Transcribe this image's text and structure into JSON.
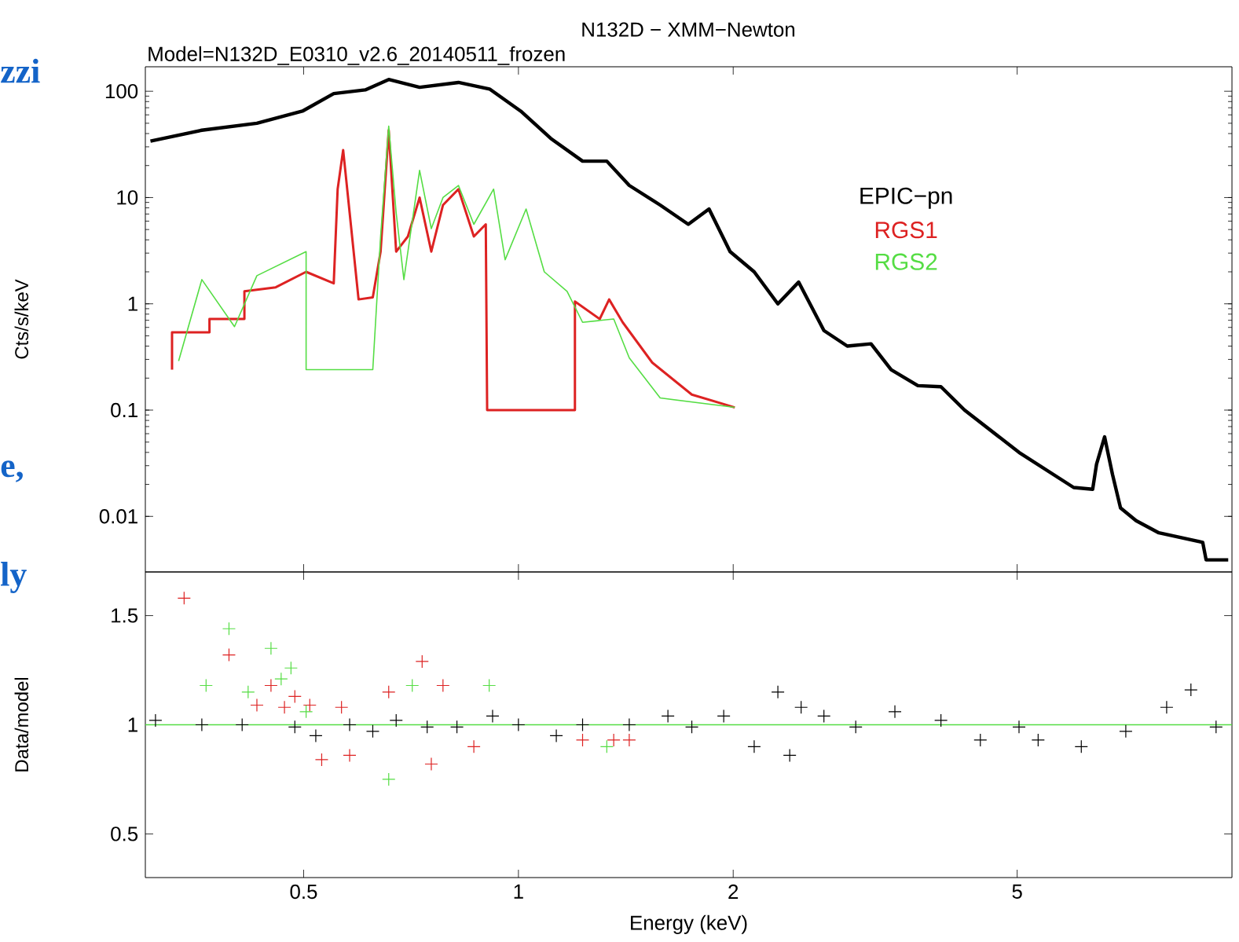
{
  "chart_data": [
    {
      "type": "line",
      "title": "N132D − XMM−Newton",
      "subtitle": "Model=N132D_E0310_v2.6_20140511_frozen",
      "ylabel": "Cts/s/keV",
      "log": "xy",
      "xlim": [
        0.3,
        10
      ],
      "ylim": [
        0.003,
        170
      ],
      "xticks": [
        0.5,
        1,
        2,
        5
      ],
      "yticks": [
        0.01,
        0.1,
        1,
        10,
        100
      ],
      "tick_labels": "y",
      "legend": "right",
      "annotations": [
        "zzi",
        "e,",
        "ly"
      ],
      "series": [
        {
          "name": "EPIC−pn",
          "color": "#000000",
          "x": [
            0.305,
            0.36,
            0.43,
            0.498,
            0.551,
            0.61,
            0.658,
            0.727,
            0.824,
            0.911,
            1.0075,
            1.11,
            1.23,
            1.33,
            1.43,
            1.58,
            1.73,
            1.85,
            1.98,
            2.14,
            2.31,
            2.47,
            2.68,
            2.89,
            3.12,
            3.33,
            3.63,
            3.91,
            4.22,
            5.03,
            6.0,
            6.38,
            6.46,
            6.63,
            6.8,
            6.98,
            7.34,
            7.9,
            9.1,
            9.2,
            9.88
          ],
          "values": [
            34,
            43,
            50,
            65,
            95,
            103,
            129,
            109,
            121,
            105,
            65,
            36,
            22,
            22,
            13,
            8.5,
            5.6,
            7.8,
            3.1,
            2.0,
            1.0,
            1.6,
            0.56,
            0.4,
            0.42,
            0.24,
            0.17,
            0.166,
            0.1,
            0.04,
            0.0187,
            0.018,
            0.031,
            0.056,
            0.025,
            0.012,
            0.0091,
            0.007,
            0.0057,
            0.0039,
            0.0039
          ]
        },
        {
          "name": "RGS1",
          "color": "#dd2222",
          "x": [
            0.327,
            0.327,
            0.369,
            0.369,
            0.413,
            0.413,
            0.457,
            0.504,
            0.551,
            0.558,
            0.568,
            0.58,
            0.597,
            0.625,
            0.641,
            0.658,
            0.674,
            0.7,
            0.727,
            0.755,
            0.784,
            0.824,
            0.866,
            0.9,
            0.904,
            1.2,
            1.2,
            1.3,
            1.34,
            1.4,
            1.54,
            1.75,
            2.01
          ],
          "values": [
            0.24,
            0.54,
            0.54,
            0.72,
            0.72,
            1.31,
            1.43,
            2.0,
            1.56,
            12,
            28,
            7.2,
            1.1,
            1.15,
            3.1,
            43,
            3.1,
            4.3,
            10,
            3.1,
            8.5,
            12,
            4.3,
            5.6,
            0.1,
            0.1,
            1.05,
            0.72,
            1.1,
            0.67,
            0.28,
            0.14,
            0.106
          ]
        },
        {
          "name": "RGS2",
          "color": "#55dd44",
          "x": [
            0.334,
            0.36,
            0.4,
            0.43,
            0.504,
            0.504,
            0.625,
            0.641,
            0.658,
            0.674,
            0.691,
            0.727,
            0.755,
            0.784,
            0.824,
            0.866,
            0.923,
            0.958,
            1.025,
            1.087,
            1.17,
            1.23,
            1.36,
            1.43,
            1.58,
            2.01
          ],
          "values": [
            0.29,
            1.69,
            0.61,
            1.84,
            3.1,
            0.24,
            0.24,
            4.3,
            47,
            7.2,
            1.69,
            18,
            5.1,
            10,
            13,
            5.6,
            12,
            2.6,
            7.8,
            2.0,
            1.31,
            0.67,
            0.72,
            0.31,
            0.13,
            0.106
          ]
        }
      ]
    },
    {
      "type": "scatter",
      "xlabel": "Energy (keV)",
      "ylabel": "Data/model",
      "log": "x",
      "marker": "cross",
      "xlim": [
        0.3,
        10
      ],
      "ylim": [
        0.3,
        1.7
      ],
      "xticks": [
        0.5,
        1,
        2,
        5
      ],
      "yticks": [
        0.5,
        1,
        1.5
      ],
      "ref_lines": [
        {
          "axis": "y",
          "value": 1,
          "color": "#55dd44"
        }
      ],
      "series": [
        {
          "color": "#000000",
          "x": [
            0.31,
            0.36,
            0.41,
            0.486,
            0.52,
            0.58,
            0.625,
            0.674,
            0.745,
            0.82,
            0.92,
            1.0,
            1.13,
            1.23,
            1.43,
            1.62,
            1.75,
            1.94,
            2.14,
            2.31,
            2.4,
            2.49,
            2.68,
            2.97,
            3.37,
            3.91,
            4.44,
            5.03,
            5.35,
            6.15,
            7.1,
            8.1,
            8.76,
            9.5
          ],
          "values": [
            1.02,
            1.0,
            1.0,
            0.99,
            0.95,
            1.0,
            0.97,
            1.02,
            0.99,
            0.99,
            1.04,
            1.0,
            0.95,
            1.0,
            1.0,
            1.04,
            0.99,
            1.04,
            0.9,
            1.15,
            0.86,
            1.08,
            1.04,
            0.99,
            1.06,
            1.02,
            0.93,
            0.99,
            0.93,
            0.9,
            0.97,
            1.08,
            1.16,
            0.99
          ]
        },
        {
          "color": "#dd2222",
          "x": [
            0.34,
            0.393,
            0.43,
            0.45,
            0.47,
            0.486,
            0.51,
            0.53,
            0.565,
            0.58,
            0.658,
            0.733,
            0.755,
            0.784,
            0.866,
            1.23,
            1.36,
            1.43
          ],
          "values": [
            1.58,
            1.32,
            1.09,
            1.18,
            1.08,
            1.13,
            1.09,
            0.84,
            1.08,
            0.86,
            1.15,
            1.29,
            0.82,
            1.18,
            0.9,
            0.93,
            0.93,
            0.93
          ]
        },
        {
          "color": "#55dd44",
          "x": [
            0.365,
            0.393,
            0.418,
            0.45,
            0.465,
            0.48,
            0.504,
            0.658,
            0.71,
            0.91,
            1.33
          ],
          "values": [
            1.18,
            1.44,
            1.15,
            1.35,
            1.21,
            1.26,
            1.06,
            0.75,
            1.18,
            1.18,
            0.9
          ]
        }
      ]
    }
  ]
}
